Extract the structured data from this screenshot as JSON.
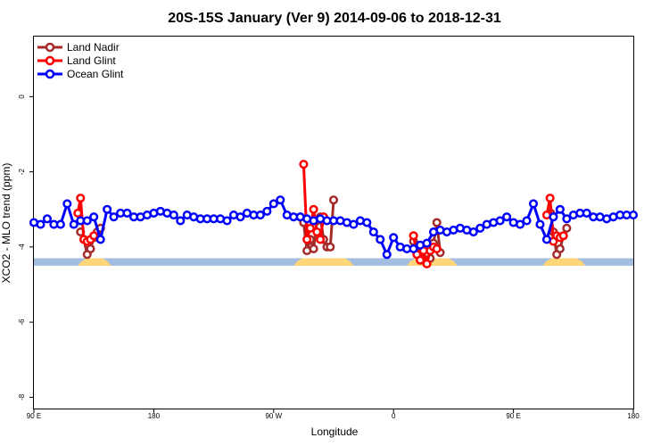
{
  "chart_data": {
    "type": "line",
    "title": "20S-15S January (Ver 9)   2014-09-06 to 2018-12-31",
    "xlabel": "Longitude",
    "ylabel": "XCO2 - MLO trend (ppm)",
    "xlim": [
      90,
      540
    ],
    "ylim": [
      -8.3,
      1.6
    ],
    "xticks": [
      {
        "value": 90,
        "label": "90 E"
      },
      {
        "value": 180,
        "label": "180"
      },
      {
        "value": 270,
        "label": "90 W"
      },
      {
        "value": 360,
        "label": "0"
      },
      {
        "value": 450,
        "label": "90 E"
      },
      {
        "value": 540,
        "label": "180"
      }
    ],
    "yticks": [
      {
        "value": 0,
        "label": "0"
      },
      {
        "value": -2,
        "label": "-2"
      },
      {
        "value": -4,
        "label": "-4"
      },
      {
        "value": -6,
        "label": "-6"
      },
      {
        "value": -8,
        "label": "-8"
      }
    ],
    "grid": false,
    "legend_position": "top-left",
    "surface_band": {
      "y_range": [
        -4.5,
        -4.3
      ],
      "ocean_color": "#a3bde0",
      "land_color": "#ffd57a",
      "land_segments": [
        [
          123,
          148
        ],
        [
          285,
          330
        ],
        [
          370,
          408
        ],
        [
          472,
          504
        ]
      ]
    },
    "series": [
      {
        "name": "Land Nadir",
        "color": "#a52a2a",
        "segments": [
          [
            [
              125,
              -3.6
            ],
            [
              127.5,
              -3.8
            ],
            [
              130,
              -4.2
            ],
            [
              132.5,
              -4.05
            ],
            [
              135,
              -3.75
            ],
            [
              137.5,
              -3.6
            ],
            [
              140,
              -3.5
            ]
          ],
          [
            [
              290,
              -3.2
            ],
            [
              292.5,
              -3.35
            ],
            [
              295,
              -4.1
            ],
            [
              297.5,
              -3.8
            ],
            [
              300,
              -4.05
            ],
            [
              302.5,
              -3.3
            ],
            [
              305,
              -3.2
            ],
            [
              307.5,
              -3.8
            ],
            [
              310,
              -4.0
            ],
            [
              312.5,
              -4.0
            ],
            [
              315,
              -2.75
            ]
          ],
          [
            [
              375,
              -3.85
            ],
            [
              377.5,
              -4.0
            ],
            [
              380,
              -4.2
            ],
            [
              382.5,
              -4.3
            ],
            [
              385,
              -4.2
            ],
            [
              387.5,
              -4.3
            ],
            [
              390,
              -3.9
            ],
            [
              392.5,
              -3.35
            ],
            [
              395,
              -4.15
            ]
          ],
          [
            [
              478,
              -3.1
            ],
            [
              480,
              -3.6
            ],
            [
              482.5,
              -4.2
            ],
            [
              485,
              -4.05
            ],
            [
              487.5,
              -3.7
            ],
            [
              490,
              -3.5
            ]
          ]
        ]
      },
      {
        "name": "Land Glint",
        "color": "#ff0000",
        "segments": [
          [
            [
              123,
              -3.1
            ],
            [
              125,
              -2.7
            ],
            [
              127.5,
              -3.8
            ],
            [
              130,
              -3.85
            ],
            [
              132.5,
              -3.8
            ],
            [
              135,
              -3.7
            ]
          ],
          [
            [
              292.5,
              -1.8
            ],
            [
              295,
              -3.8
            ],
            [
              297.5,
              -3.5
            ],
            [
              300,
              -3.0
            ],
            [
              302.5,
              -3.6
            ],
            [
              305,
              -3.8
            ],
            [
              307.5,
              -3.2
            ]
          ],
          [
            [
              375,
              -3.7
            ],
            [
              377.5,
              -4.2
            ],
            [
              380,
              -4.35
            ],
            [
              382.5,
              -4.1
            ],
            [
              385,
              -4.45
            ],
            [
              387.5,
              -4.1
            ],
            [
              390,
              -4.0
            ],
            [
              392.5,
              -4.05
            ]
          ],
          [
            [
              475,
              -3.15
            ],
            [
              477.5,
              -2.7
            ],
            [
              480,
              -3.85
            ],
            [
              482.5,
              -3.7
            ],
            [
              485,
              -3.75
            ],
            [
              487.5,
              -3.7
            ]
          ]
        ]
      },
      {
        "name": "Ocean Glint",
        "color": "#0000ff",
        "segments": [
          [
            [
              90,
              -3.35
            ],
            [
              95,
              -3.4
            ],
            [
              100,
              -3.25
            ],
            [
              105,
              -3.4
            ],
            [
              110,
              -3.4
            ],
            [
              115,
              -2.85
            ],
            [
              120,
              -3.4
            ],
            [
              125,
              -3.3
            ],
            [
              130,
              -3.3
            ],
            [
              135,
              -3.2
            ],
            [
              140,
              -3.8
            ],
            [
              145,
              -3.0
            ],
            [
              150,
              -3.2
            ],
            [
              155,
              -3.1
            ],
            [
              160,
              -3.1
            ],
            [
              165,
              -3.2
            ],
            [
              170,
              -3.2
            ],
            [
              175,
              -3.15
            ],
            [
              180,
              -3.1
            ],
            [
              185,
              -3.05
            ],
            [
              190,
              -3.1
            ],
            [
              195,
              -3.15
            ],
            [
              200,
              -3.3
            ],
            [
              205,
              -3.15
            ],
            [
              210,
              -3.2
            ],
            [
              215,
              -3.25
            ],
            [
              220,
              -3.25
            ],
            [
              225,
              -3.25
            ],
            [
              230,
              -3.25
            ],
            [
              235,
              -3.3
            ],
            [
              240,
              -3.15
            ],
            [
              245,
              -3.2
            ],
            [
              250,
              -3.1
            ],
            [
              255,
              -3.15
            ],
            [
              260,
              -3.15
            ],
            [
              265,
              -3.05
            ],
            [
              270,
              -2.85
            ],
            [
              275,
              -2.75
            ],
            [
              280,
              -3.15
            ],
            [
              285,
              -3.2
            ],
            [
              290,
              -3.2
            ],
            [
              295,
              -3.25
            ],
            [
              300,
              -3.3
            ],
            [
              305,
              -3.25
            ],
            [
              310,
              -3.3
            ],
            [
              315,
              -3.3
            ],
            [
              320,
              -3.3
            ],
            [
              325,
              -3.35
            ],
            [
              330,
              -3.4
            ],
            [
              335,
              -3.3
            ],
            [
              340,
              -3.35
            ],
            [
              345,
              -3.6
            ],
            [
              350,
              -3.8
            ],
            [
              355,
              -4.2
            ],
            [
              360,
              -3.75
            ],
            [
              365,
              -4.0
            ],
            [
              370,
              -4.05
            ],
            [
              375,
              -4.05
            ],
            [
              380,
              -3.95
            ],
            [
              385,
              -3.9
            ],
            [
              390,
              -3.6
            ],
            [
              395,
              -3.55
            ],
            [
              400,
              -3.6
            ],
            [
              405,
              -3.55
            ],
            [
              410,
              -3.5
            ],
            [
              415,
              -3.55
            ],
            [
              420,
              -3.6
            ],
            [
              425,
              -3.5
            ],
            [
              430,
              -3.4
            ],
            [
              435,
              -3.35
            ],
            [
              440,
              -3.3
            ],
            [
              445,
              -3.2
            ],
            [
              450,
              -3.35
            ],
            [
              455,
              -3.4
            ],
            [
              460,
              -3.3
            ],
            [
              465,
              -2.85
            ],
            [
              470,
              -3.4
            ],
            [
              475,
              -3.8
            ],
            [
              480,
              -3.2
            ],
            [
              485,
              -3.0
            ],
            [
              490,
              -3.25
            ],
            [
              495,
              -3.15
            ],
            [
              500,
              -3.1
            ],
            [
              505,
              -3.1
            ],
            [
              510,
              -3.2
            ],
            [
              515,
              -3.2
            ],
            [
              520,
              -3.25
            ],
            [
              525,
              -3.2
            ],
            [
              530,
              -3.15
            ],
            [
              535,
              -3.15
            ],
            [
              540,
              -3.15
            ]
          ]
        ]
      }
    ]
  }
}
